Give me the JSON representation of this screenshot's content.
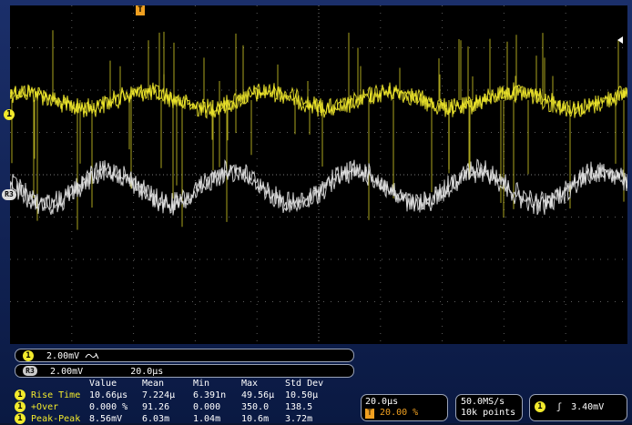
{
  "colors": {
    "ch1": "#f2ea2c",
    "ref": "#e4e4e4",
    "trigger": "#f0a020",
    "grid": "#5c5c5c",
    "frame": "#13265a"
  },
  "markers": {
    "trigger_top": "T",
    "ch1_left": "1",
    "ref_left": "R3"
  },
  "channel_readout": {
    "badge": "1",
    "scale": "2.00mV",
    "bandwidth_icon": "bw-limit-icon"
  },
  "ref_readout": {
    "badge": "R3",
    "scale": "2.00mV",
    "timebase": "20.0µs"
  },
  "measurements": {
    "headers": [
      "Value",
      "Mean",
      "Min",
      "Max",
      "Std Dev"
    ],
    "rows": [
      {
        "badge": "1",
        "name": "Rise Time",
        "value": "10.66µs",
        "mean": "7.224µ",
        "min": "6.391n",
        "max": "49.56µ",
        "std": "10.50µ"
      },
      {
        "badge": "1",
        "name": "+Over",
        "value": "0.000 %",
        "mean": "91.26",
        "min": "0.000",
        "max": "350.0",
        "std": "138.5"
      },
      {
        "badge": "1",
        "name": "Peak-Peak",
        "value": "8.56mV",
        "mean": "6.03m",
        "min": "1.04m",
        "max": "10.6m",
        "std": "3.72m"
      }
    ]
  },
  "horizontal": {
    "scale": "20.0µs",
    "trigger_badge": "T",
    "position": "20.00 %"
  },
  "acquisition": {
    "sample_rate": "50.0MS/s",
    "record_length": "10k points"
  },
  "trigger": {
    "badge": "1",
    "slope_icon": "rising-edge-icon",
    "slope_glyph": "ʃ",
    "level": "3.40mV"
  }
}
